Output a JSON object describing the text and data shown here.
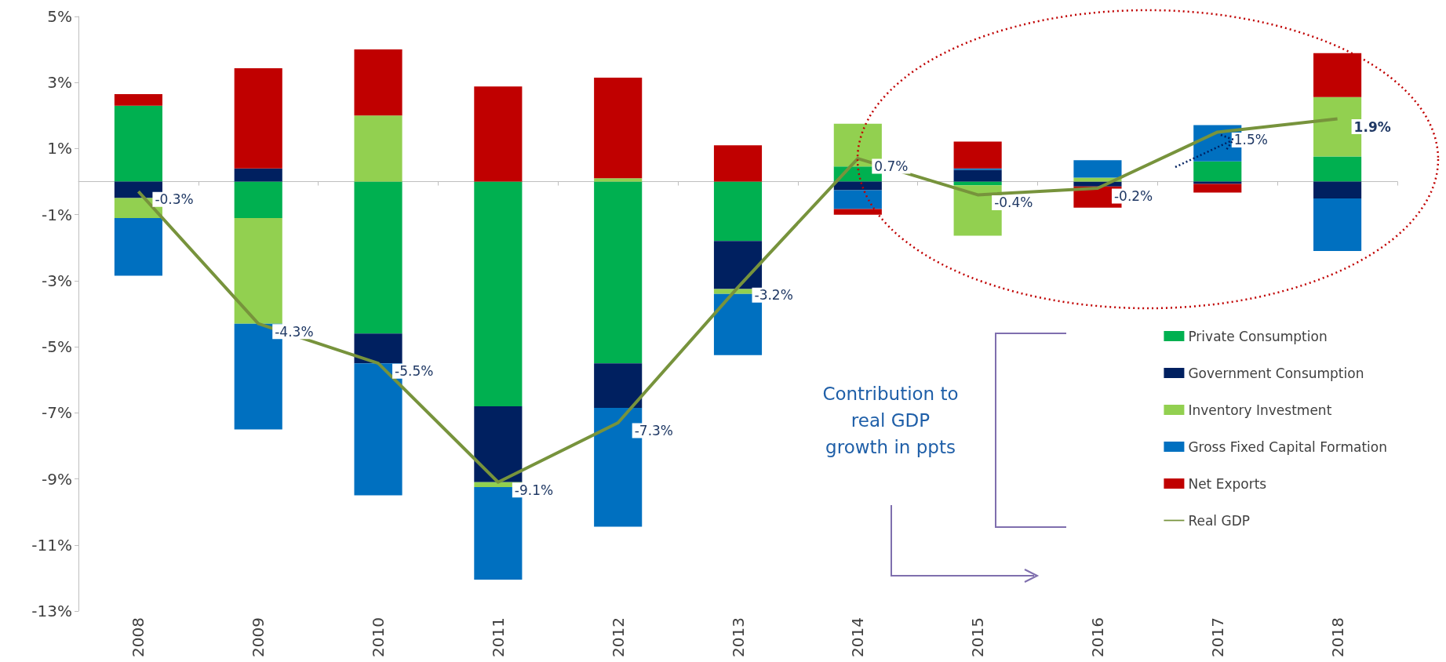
{
  "chart_data": {
    "type": "bar",
    "stacked": true,
    "categories": [
      "2008",
      "2009",
      "2010",
      "2011",
      "2012",
      "2013",
      "2014",
      "2015",
      "2016",
      "2017",
      "2018"
    ],
    "series": [
      {
        "name": "Private Consumption",
        "color": "#00b050",
        "values": [
          2.3,
          -1.1,
          -4.6,
          -6.8,
          -5.5,
          -1.8,
          0.46,
          -0.11,
          0,
          0.61,
          0.76
        ]
      },
      {
        "name": "Government Consumption",
        "color": "#002060",
        "values": [
          -0.5,
          0.4,
          -0.9,
          -2.3,
          -1.35,
          -1.45,
          -0.26,
          0.36,
          -0.15,
          -0.07,
          -0.51
        ]
      },
      {
        "name": "Inventory Investment",
        "color": "#92d050",
        "values": [
          -0.6,
          -3.2,
          2.0,
          -0.15,
          0.1,
          -0.15,
          1.29,
          -1.53,
          0.12,
          0,
          1.8
        ]
      },
      {
        "name": "Gross Fixed Capital Formation",
        "color": "#0070c0",
        "values": [
          -1.75,
          -3.2,
          -4.0,
          -2.8,
          -3.6,
          -1.85,
          -0.57,
          0.04,
          0.53,
          1.1,
          -1.59
        ]
      },
      {
        "name": "Net Exports",
        "color": "#c00000",
        "values": [
          0.35,
          3.03,
          2.0,
          2.88,
          3.05,
          1.1,
          -0.17,
          0.81,
          -0.64,
          -0.26,
          1.33
        ]
      },
      {
        "name": "Real GDP",
        "type": "line",
        "color": "#77933c",
        "values": [
          -0.3,
          -4.3,
          -5.5,
          -9.1,
          -7.3,
          -3.2,
          0.7,
          -0.4,
          -0.2,
          1.5,
          1.9
        ],
        "value_labels": [
          "-0.3%",
          "-4.3%",
          "-5.5%",
          "-9.1%",
          "-7.3%",
          "-3.2%",
          "0.7%",
          "-0.4%",
          "-0.2%",
          "1.5%",
          "1.9%"
        ]
      }
    ],
    "ylim": [
      -13,
      5
    ],
    "yticks": [
      {
        "value": -13,
        "label": "-13%"
      },
      {
        "value": -11,
        "label": "-11%"
      },
      {
        "value": -9,
        "label": "-9%"
      },
      {
        "value": -7,
        "label": "-7%"
      },
      {
        "value": -5,
        "label": "-5%"
      },
      {
        "value": -3,
        "label": "-3%"
      },
      {
        "value": -1,
        "label": "-1%"
      },
      {
        "value": 1,
        "label": "1%"
      },
      {
        "value": 3,
        "label": "3%"
      },
      {
        "value": 5,
        "label": "5%"
      }
    ],
    "grid": false,
    "legend": "bottom right",
    "marker": "none",
    "annotations": [
      "Contribution to real GDP growth in ppts"
    ]
  }
}
